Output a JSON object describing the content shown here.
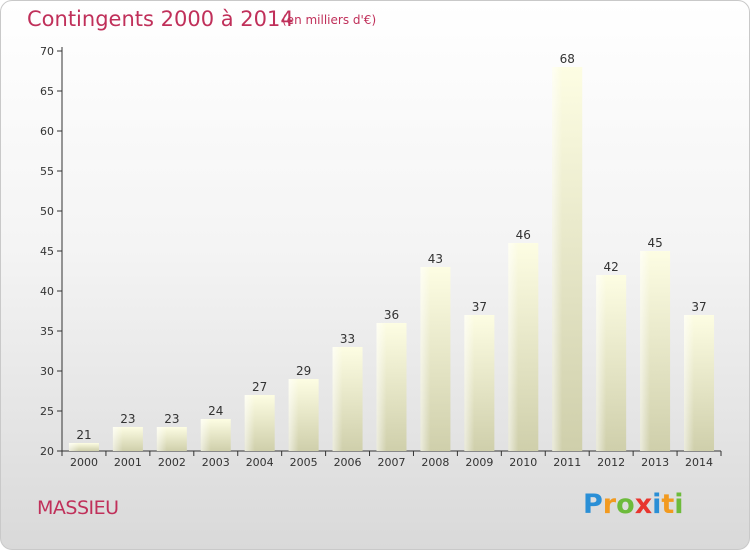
{
  "title": "Contingents 2000 à 2014",
  "subtitle": "(en milliers d'€)",
  "place": "MASSIEU",
  "logo": {
    "letters": [
      "P",
      "r",
      "o",
      "x",
      "i",
      "t",
      "i"
    ],
    "colors": [
      "#2a8fd6",
      "#f29a1f",
      "#6dbb3b",
      "#e8352e",
      "#2a8fd6",
      "#f29a1f",
      "#6dbb3b"
    ]
  },
  "colors": {
    "title": "#c0305a",
    "bar_top": "#fdfde3",
    "bar_bottom": "#cfcfab",
    "axis": "#333333",
    "grid": "#cccccc"
  },
  "chart_data": {
    "type": "bar",
    "categories": [
      "2000",
      "2001",
      "2002",
      "2003",
      "2004",
      "2005",
      "2006",
      "2007",
      "2008",
      "2009",
      "2010",
      "2011",
      "2012",
      "2013",
      "2014"
    ],
    "values": [
      21,
      23,
      23,
      24,
      27,
      29,
      33,
      36,
      43,
      37,
      46,
      68,
      42,
      45,
      37
    ],
    "title": "Contingents 2000 à 2014",
    "subtitle": "(en milliers d'€)",
    "ylim": [
      20,
      70
    ],
    "yticks": [
      20,
      25,
      30,
      35,
      40,
      45,
      50,
      55,
      60,
      65,
      70
    ],
    "grid": false,
    "data_labels": true
  }
}
